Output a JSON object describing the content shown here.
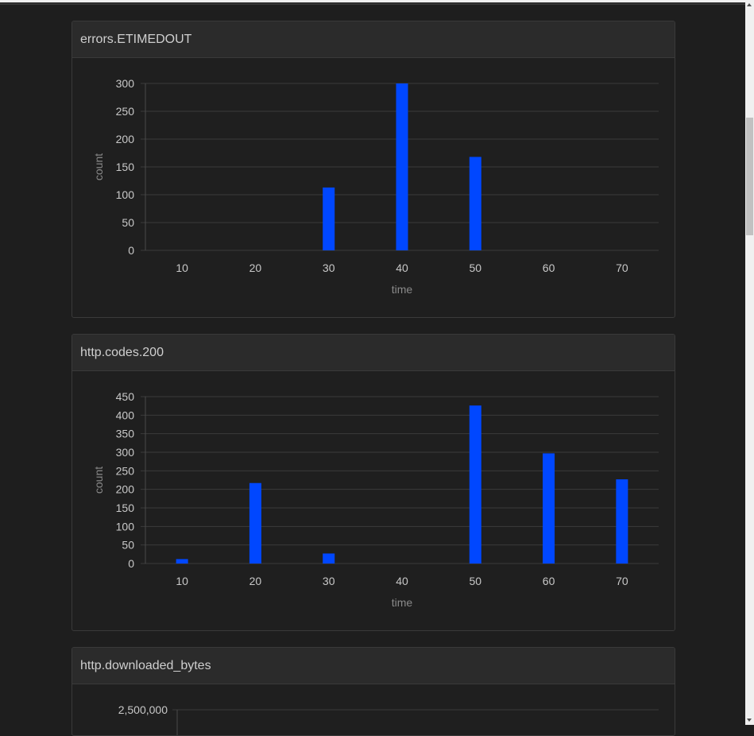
{
  "colors": {
    "bar": "#0047ff",
    "grid": "#3b3b3b",
    "background": "#1e1e1e"
  },
  "panels": [
    {
      "title": "errors.ETIMEDOUT"
    },
    {
      "title": "http.codes.200"
    },
    {
      "title": "http.downloaded_bytes"
    }
  ],
  "chart_data": [
    {
      "type": "bar",
      "title": "errors.ETIMEDOUT",
      "xlabel": "time",
      "ylabel": "count",
      "categories": [
        10,
        20,
        30,
        40,
        50,
        60,
        70
      ],
      "values": [
        0,
        0,
        113,
        300,
        168,
        0,
        0
      ],
      "ylim": [
        0,
        300
      ],
      "yticks": [
        0,
        50,
        100,
        150,
        200,
        250,
        300
      ],
      "grid": true
    },
    {
      "type": "bar",
      "title": "http.codes.200",
      "xlabel": "time",
      "ylabel": "count",
      "categories": [
        10,
        20,
        30,
        40,
        50,
        60,
        70
      ],
      "values": [
        12,
        217,
        27,
        0,
        426,
        297,
        227
      ],
      "ylim": [
        0,
        450
      ],
      "yticks": [
        0,
        50,
        100,
        150,
        200,
        250,
        300,
        350,
        400,
        450
      ],
      "grid": true
    },
    {
      "type": "bar",
      "title": "http.downloaded_bytes",
      "xlabel": "",
      "ylabel": "",
      "categories": [],
      "values": [],
      "yticks_visible": [
        "2,500,000"
      ],
      "grid": true
    }
  ]
}
